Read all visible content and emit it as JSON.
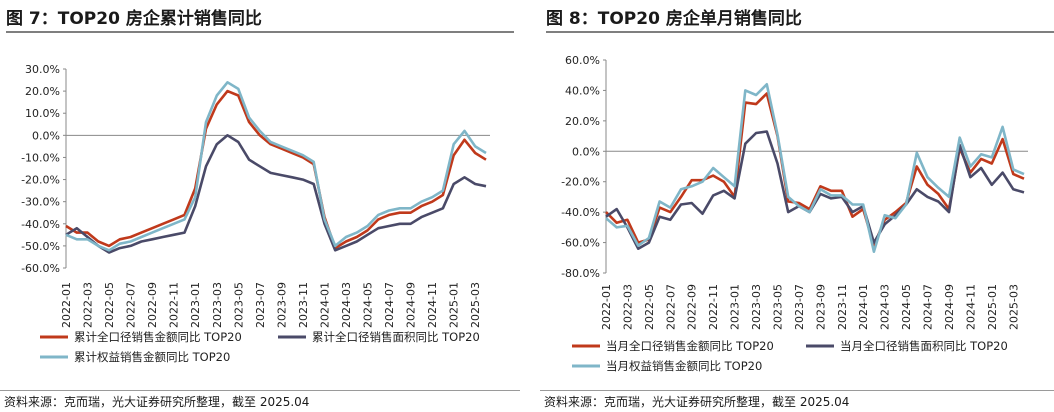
{
  "left": {
    "title": "图 7：TOP20 房企累计销售同比",
    "source": "资料来源：克而瑞，光大证券研究所整理，截至 2025.04"
  },
  "right": {
    "title": "图 8：TOP20 房企单月销售同比",
    "source": "资料来源：克而瑞，光大证券研究所整理，截至 2025.04"
  },
  "chart_data": [
    {
      "type": "line",
      "title": "图 7：TOP20 房企累计销售同比",
      "y_unit": "%",
      "ylim": [
        -60,
        30
      ],
      "ytick_step": 10,
      "grid": false,
      "legend_position": "bottom",
      "x": [
        "2022-01",
        "2022-02",
        "2022-03",
        "2022-04",
        "2022-05",
        "2022-06",
        "2022-07",
        "2022-08",
        "2022-09",
        "2022-10",
        "2022-11",
        "2022-12",
        "2023-01",
        "2023-02",
        "2023-03",
        "2023-04",
        "2023-05",
        "2023-06",
        "2023-07",
        "2023-08",
        "2023-09",
        "2023-10",
        "2023-11",
        "2023-12",
        "2024-01",
        "2024-02",
        "2024-03",
        "2024-04",
        "2024-05",
        "2024-06",
        "2024-07",
        "2024-08",
        "2024-09",
        "2024-10",
        "2024-11",
        "2024-12",
        "2025-01",
        "2025-02",
        "2025-03",
        "2025-04"
      ],
      "x_tick_labels": [
        "2022-01",
        "2022-03",
        "2022-05",
        "2022-07",
        "2022-09",
        "2022-11",
        "2023-01",
        "2023-03",
        "2023-05",
        "2023-07",
        "2023-09",
        "2023-11",
        "2024-01",
        "2024-03",
        "2024-05",
        "2024-07",
        "2024-09",
        "2024-11",
        "2025-01",
        "2025-03"
      ],
      "series": [
        {
          "name": "累计全口径销售金额同比 TOP20",
          "color": "#c0391b",
          "values": [
            -41,
            -44,
            -44,
            -48,
            -50,
            -47,
            -46,
            -44,
            -42,
            -40,
            -38,
            -36,
            -24,
            3,
            14,
            20,
            18,
            6,
            0,
            -4,
            -6,
            -8,
            -10,
            -13,
            -37,
            -51,
            -48,
            -46,
            -43,
            -38,
            -36,
            -35,
            -35,
            -32,
            -30,
            -27,
            -9,
            -2,
            -8,
            -11
          ]
        },
        {
          "name": "累计全口径销售面积同比 TOP20",
          "color": "#4a4a68",
          "values": [
            -45,
            -42,
            -46,
            -50,
            -53,
            -51,
            -50,
            -48,
            -47,
            -46,
            -45,
            -44,
            -32,
            -14,
            -4,
            0,
            -3,
            -11,
            -14,
            -17,
            -18,
            -19,
            -20,
            -22,
            -40,
            -52,
            -50,
            -48,
            -45,
            -42,
            -41,
            -40,
            -40,
            -37,
            -35,
            -33,
            -22,
            -19,
            -22,
            -23
          ]
        },
        {
          "name": "累计权益销售金额同比 TOP20",
          "color": "#7fb6c8",
          "values": [
            -45,
            -47,
            -47,
            -50,
            -52,
            -49,
            -48,
            -46,
            -44,
            -42,
            -40,
            -38,
            -28,
            6,
            18,
            24,
            21,
            8,
            2,
            -3,
            -5,
            -7,
            -9,
            -12,
            -38,
            -50,
            -46,
            -44,
            -41,
            -36,
            -34,
            -33,
            -33,
            -30,
            -28,
            -25,
            -4,
            2,
            -5,
            -8
          ]
        }
      ]
    },
    {
      "type": "line",
      "title": "图 8：TOP20 房企单月销售同比",
      "y_unit": "%",
      "ylim": [
        -80,
        60
      ],
      "ytick_step": 20,
      "grid": false,
      "legend_position": "bottom",
      "x": [
        "2022-01",
        "2022-02",
        "2022-03",
        "2022-04",
        "2022-05",
        "2022-06",
        "2022-07",
        "2022-08",
        "2022-09",
        "2022-10",
        "2022-11",
        "2022-12",
        "2023-01",
        "2023-02",
        "2023-03",
        "2023-04",
        "2023-05",
        "2023-06",
        "2023-07",
        "2023-08",
        "2023-09",
        "2023-10",
        "2023-11",
        "2023-12",
        "2024-01",
        "2024-02",
        "2024-03",
        "2024-04",
        "2024-05",
        "2024-06",
        "2024-07",
        "2024-08",
        "2024-09",
        "2024-10",
        "2024-11",
        "2024-12",
        "2025-01",
        "2025-02",
        "2025-03",
        "2025-04"
      ],
      "x_tick_labels": [
        "2022-01",
        "2022-03",
        "2022-05",
        "2022-07",
        "2022-09",
        "2022-11",
        "2023-01",
        "2023-03",
        "2023-05",
        "2023-07",
        "2023-09",
        "2023-11",
        "2024-01",
        "2024-03",
        "2024-05",
        "2024-07",
        "2024-09",
        "2024-11",
        "2025-01",
        "2025-03"
      ],
      "series": [
        {
          "name": "当月全口径销售金额同比 TOP20",
          "color": "#c0391b",
          "values": [
            -40,
            -47,
            -45,
            -60,
            -58,
            -37,
            -40,
            -30,
            -19,
            -19,
            -16,
            -20,
            -30,
            32,
            31,
            38,
            10,
            -33,
            -34,
            -38,
            -23,
            -26,
            -26,
            -43,
            -38,
            -62,
            -45,
            -40,
            -34,
            -10,
            -22,
            -28,
            -38,
            2,
            -14,
            -5,
            -8,
            8,
            -15,
            -18
          ]
        },
        {
          "name": "当月全口径销售面积同比 TOP20",
          "color": "#4a4a68",
          "values": [
            -43,
            -38,
            -50,
            -64,
            -60,
            -43,
            -45,
            -35,
            -34,
            -41,
            -29,
            -26,
            -31,
            5,
            12,
            13,
            -8,
            -40,
            -36,
            -40,
            -28,
            -31,
            -30,
            -40,
            -36,
            -60,
            -48,
            -42,
            -35,
            -25,
            -30,
            -33,
            -40,
            4,
            -17,
            -11,
            -22,
            -14,
            -25,
            -27
          ]
        },
        {
          "name": "当月权益销售金额同比 TOP20",
          "color": "#7fb6c8",
          "values": [
            -44,
            -50,
            -49,
            -62,
            -57,
            -33,
            -37,
            -25,
            -23,
            -20,
            -11,
            -17,
            -23,
            40,
            37,
            44,
            11,
            -30,
            -36,
            -40,
            -25,
            -29,
            -29,
            -35,
            -35,
            -66,
            -42,
            -44,
            -35,
            -1,
            -17,
            -24,
            -30,
            9,
            -10,
            -2,
            -4,
            16,
            -12,
            -15
          ]
        }
      ]
    }
  ]
}
